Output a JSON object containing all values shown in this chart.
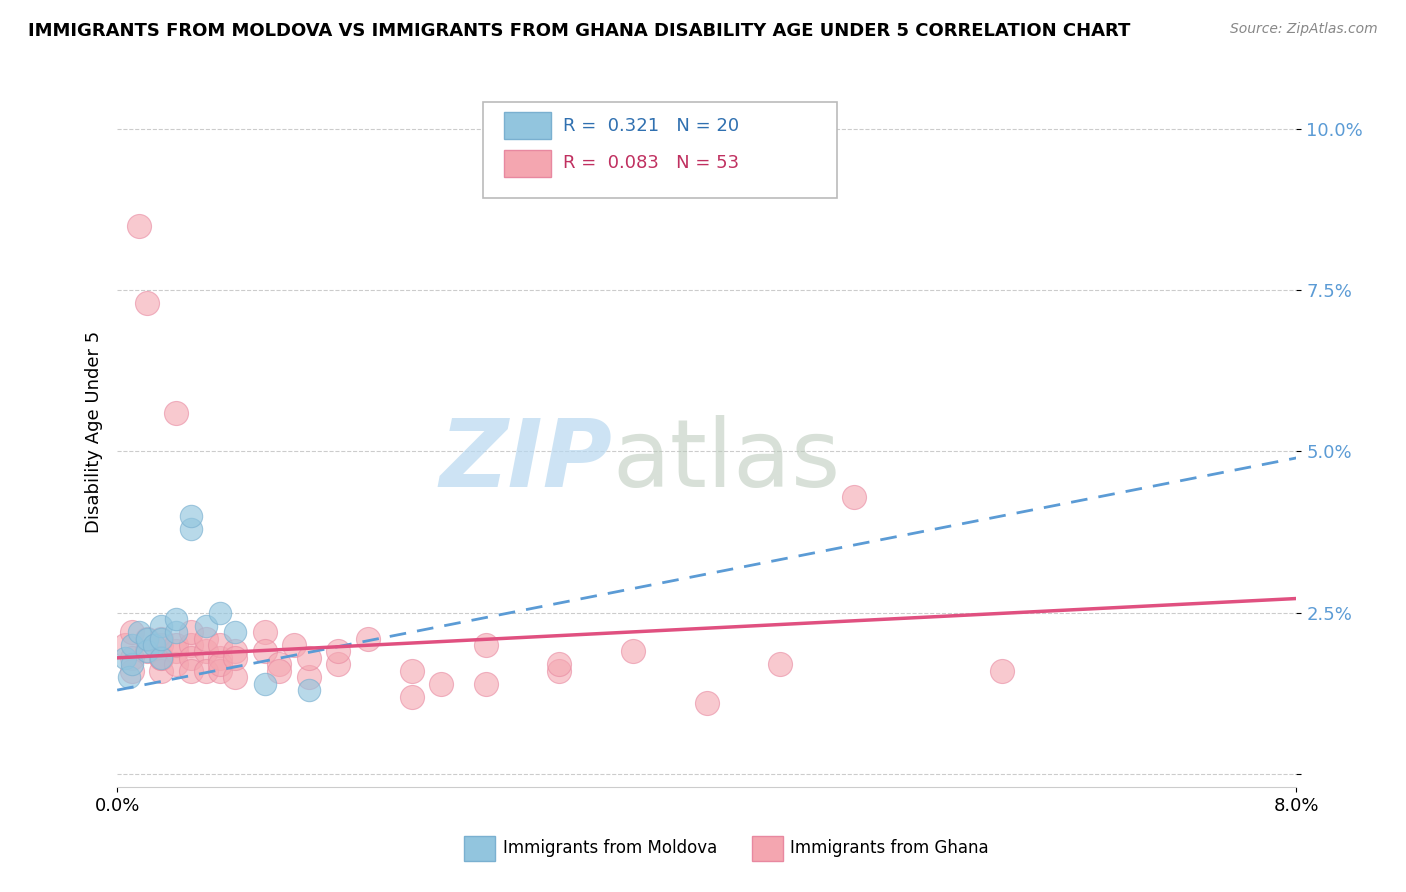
{
  "title": "IMMIGRANTS FROM MOLDOVA VS IMMIGRANTS FROM GHANA DISABILITY AGE UNDER 5 CORRELATION CHART",
  "source": "Source: ZipAtlas.com",
  "ylabel": "Disability Age Under 5",
  "ytick_vals": [
    0.0,
    0.025,
    0.05,
    0.075,
    0.1
  ],
  "ytick_labels": [
    "",
    "2.5%",
    "5.0%",
    "7.5%",
    "10.0%"
  ],
  "xlim": [
    0.0,
    0.08
  ],
  "ylim": [
    -0.002,
    0.108
  ],
  "legend_moldova": "R =  0.321   N = 20",
  "legend_ghana": "R =  0.083   N = 53",
  "moldova_color": "#92c5de",
  "ghana_color": "#f4a6b0",
  "moldova_line_color": "#5b9bd5",
  "ghana_line_color": "#e05080",
  "watermark_zip": "ZIP",
  "watermark_atlas": "atlas",
  "moldova_points": [
    [
      0.0005,
      0.018
    ],
    [
      0.0008,
      0.015
    ],
    [
      0.001,
      0.017
    ],
    [
      0.001,
      0.02
    ],
    [
      0.0015,
      0.022
    ],
    [
      0.002,
      0.019
    ],
    [
      0.002,
      0.021
    ],
    [
      0.0025,
      0.02
    ],
    [
      0.003,
      0.018
    ],
    [
      0.003,
      0.023
    ],
    [
      0.003,
      0.021
    ],
    [
      0.004,
      0.022
    ],
    [
      0.004,
      0.024
    ],
    [
      0.005,
      0.038
    ],
    [
      0.005,
      0.04
    ],
    [
      0.006,
      0.023
    ],
    [
      0.007,
      0.025
    ],
    [
      0.008,
      0.022
    ],
    [
      0.01,
      0.014
    ],
    [
      0.013,
      0.013
    ]
  ],
  "ghana_points": [
    [
      0.0005,
      0.02
    ],
    [
      0.001,
      0.018
    ],
    [
      0.001,
      0.016
    ],
    [
      0.001,
      0.022
    ],
    [
      0.0015,
      0.085
    ],
    [
      0.002,
      0.073
    ],
    [
      0.002,
      0.019
    ],
    [
      0.002,
      0.021
    ],
    [
      0.003,
      0.018
    ],
    [
      0.003,
      0.02
    ],
    [
      0.003,
      0.016
    ],
    [
      0.003,
      0.021
    ],
    [
      0.003,
      0.018
    ],
    [
      0.004,
      0.019
    ],
    [
      0.004,
      0.017
    ],
    [
      0.004,
      0.02
    ],
    [
      0.004,
      0.056
    ],
    [
      0.005,
      0.02
    ],
    [
      0.005,
      0.018
    ],
    [
      0.005,
      0.016
    ],
    [
      0.005,
      0.022
    ],
    [
      0.006,
      0.019
    ],
    [
      0.006,
      0.016
    ],
    [
      0.006,
      0.021
    ],
    [
      0.007,
      0.018
    ],
    [
      0.007,
      0.02
    ],
    [
      0.007,
      0.016
    ],
    [
      0.007,
      0.017
    ],
    [
      0.008,
      0.019
    ],
    [
      0.008,
      0.015
    ],
    [
      0.008,
      0.018
    ],
    [
      0.01,
      0.022
    ],
    [
      0.01,
      0.019
    ],
    [
      0.011,
      0.017
    ],
    [
      0.011,
      0.016
    ],
    [
      0.012,
      0.02
    ],
    [
      0.013,
      0.015
    ],
    [
      0.013,
      0.018
    ],
    [
      0.015,
      0.017
    ],
    [
      0.015,
      0.019
    ],
    [
      0.017,
      0.021
    ],
    [
      0.02,
      0.012
    ],
    [
      0.02,
      0.016
    ],
    [
      0.022,
      0.014
    ],
    [
      0.025,
      0.02
    ],
    [
      0.025,
      0.014
    ],
    [
      0.03,
      0.016
    ],
    [
      0.03,
      0.017
    ],
    [
      0.035,
      0.019
    ],
    [
      0.04,
      0.011
    ],
    [
      0.045,
      0.017
    ],
    [
      0.05,
      0.043
    ],
    [
      0.06,
      0.016
    ]
  ]
}
